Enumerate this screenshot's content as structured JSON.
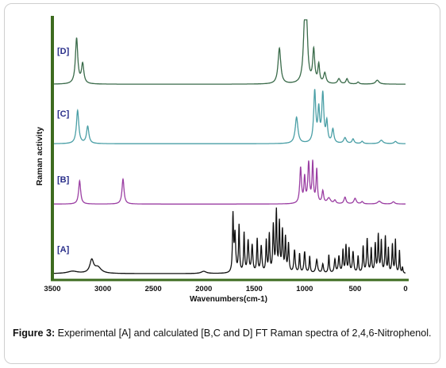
{
  "colors": {
    "axis": "#3d6b1f",
    "label_text": "#2a2f8a",
    "series_A": "#111111",
    "series_B": "#9b3fa3",
    "series_C": "#4a9fa6",
    "series_D": "#3a6b4a"
  },
  "chart_data": {
    "type": "line",
    "title": "",
    "xlabel": "Wavenumbers(cm-1)",
    "ylabel": "Raman activity",
    "xlim": [
      3500,
      0
    ],
    "x_ticks": [
      "3500",
      "3000",
      "2500",
      "2000",
      "1500",
      "1000",
      "500",
      "0"
    ],
    "x_tick_values": [
      3500,
      3000,
      2500,
      2000,
      1500,
      1000,
      500,
      0
    ],
    "grid": false,
    "legend": "none",
    "series": [
      {
        "name": "[A]",
        "peaks": [
          [
            3300,
            0.03,
            60
          ],
          [
            3110,
            0.17,
            22
          ],
          [
            3050,
            0.08,
            40
          ],
          [
            2000,
            0.03,
            30
          ],
          [
            1710,
            0.75,
            6
          ],
          [
            1690,
            0.5,
            8
          ],
          [
            1650,
            0.62,
            6
          ],
          [
            1600,
            0.52,
            6
          ],
          [
            1560,
            0.42,
            8
          ],
          [
            1520,
            0.36,
            8
          ],
          [
            1470,
            0.44,
            6
          ],
          [
            1430,
            0.35,
            8
          ],
          [
            1380,
            0.42,
            6
          ],
          [
            1350,
            0.5,
            6
          ],
          [
            1310,
            0.62,
            7
          ],
          [
            1280,
            0.8,
            6
          ],
          [
            1250,
            0.65,
            6
          ],
          [
            1220,
            0.55,
            7
          ],
          [
            1190,
            0.45,
            6
          ],
          [
            1160,
            0.38,
            7
          ],
          [
            1100,
            0.3,
            8
          ],
          [
            1050,
            0.25,
            6
          ],
          [
            1000,
            0.28,
            8
          ],
          [
            950,
            0.22,
            6
          ],
          [
            880,
            0.18,
            10
          ],
          [
            820,
            0.12,
            8
          ],
          [
            760,
            0.24,
            6
          ],
          [
            700,
            0.18,
            8
          ],
          [
            660,
            0.22,
            8
          ],
          [
            620,
            0.3,
            6
          ],
          [
            590,
            0.36,
            6
          ],
          [
            560,
            0.32,
            6
          ],
          [
            520,
            0.28,
            8
          ],
          [
            470,
            0.22,
            6
          ],
          [
            420,
            0.35,
            6
          ],
          [
            380,
            0.45,
            7
          ],
          [
            340,
            0.32,
            6
          ],
          [
            300,
            0.38,
            6
          ],
          [
            270,
            0.5,
            6
          ],
          [
            240,
            0.42,
            6
          ],
          [
            200,
            0.48,
            6
          ],
          [
            170,
            0.32,
            5
          ],
          [
            130,
            0.38,
            6
          ],
          [
            100,
            0.44,
            5
          ],
          [
            60,
            0.3,
            5
          ],
          [
            30,
            0.08,
            5
          ]
        ]
      },
      {
        "name": "[B]",
        "peaks": [
          [
            3230,
            0.42,
            12
          ],
          [
            2800,
            0.45,
            12
          ],
          [
            1040,
            0.64,
            10
          ],
          [
            1000,
            0.45,
            8
          ],
          [
            960,
            0.72,
            10
          ],
          [
            920,
            0.72,
            8
          ],
          [
            880,
            0.6,
            8
          ],
          [
            820,
            0.22,
            10
          ],
          [
            760,
            0.1,
            20
          ],
          [
            700,
            0.06,
            12
          ],
          [
            600,
            0.12,
            12
          ],
          [
            500,
            0.1,
            14
          ],
          [
            430,
            0.04,
            12
          ],
          [
            260,
            0.05,
            20
          ],
          [
            120,
            0.04,
            15
          ]
        ]
      },
      {
        "name": "[C]",
        "peaks": [
          [
            3250,
            0.58,
            14
          ],
          [
            3150,
            0.3,
            14
          ],
          [
            1080,
            0.46,
            16
          ],
          [
            900,
            0.9,
            12
          ],
          [
            860,
            0.55,
            10
          ],
          [
            820,
            0.85,
            12
          ],
          [
            780,
            0.35,
            10
          ],
          [
            720,
            0.24,
            12
          ],
          [
            600,
            0.1,
            15
          ],
          [
            520,
            0.08,
            12
          ],
          [
            430,
            0.04,
            12
          ],
          [
            240,
            0.06,
            20
          ],
          [
            100,
            0.04,
            15
          ]
        ]
      },
      {
        "name": "[D]",
        "peaks": [
          [
            3260,
            0.7,
            14
          ],
          [
            3200,
            0.3,
            14
          ],
          [
            1250,
            0.55,
            16
          ],
          [
            1000,
            0.82,
            16
          ],
          [
            980,
            0.7,
            14
          ],
          [
            910,
            0.5,
            12
          ],
          [
            860,
            0.28,
            10
          ],
          [
            800,
            0.16,
            14
          ],
          [
            660,
            0.08,
            15
          ],
          [
            580,
            0.08,
            12
          ],
          [
            470,
            0.03,
            12
          ],
          [
            280,
            0.06,
            20
          ]
        ]
      }
    ]
  },
  "caption": {
    "label": "Figure 3:",
    "text": " Experimental [A] and calculated [B,C and D] FT Raman spectra of 2,4,6-Nitrophenol."
  }
}
